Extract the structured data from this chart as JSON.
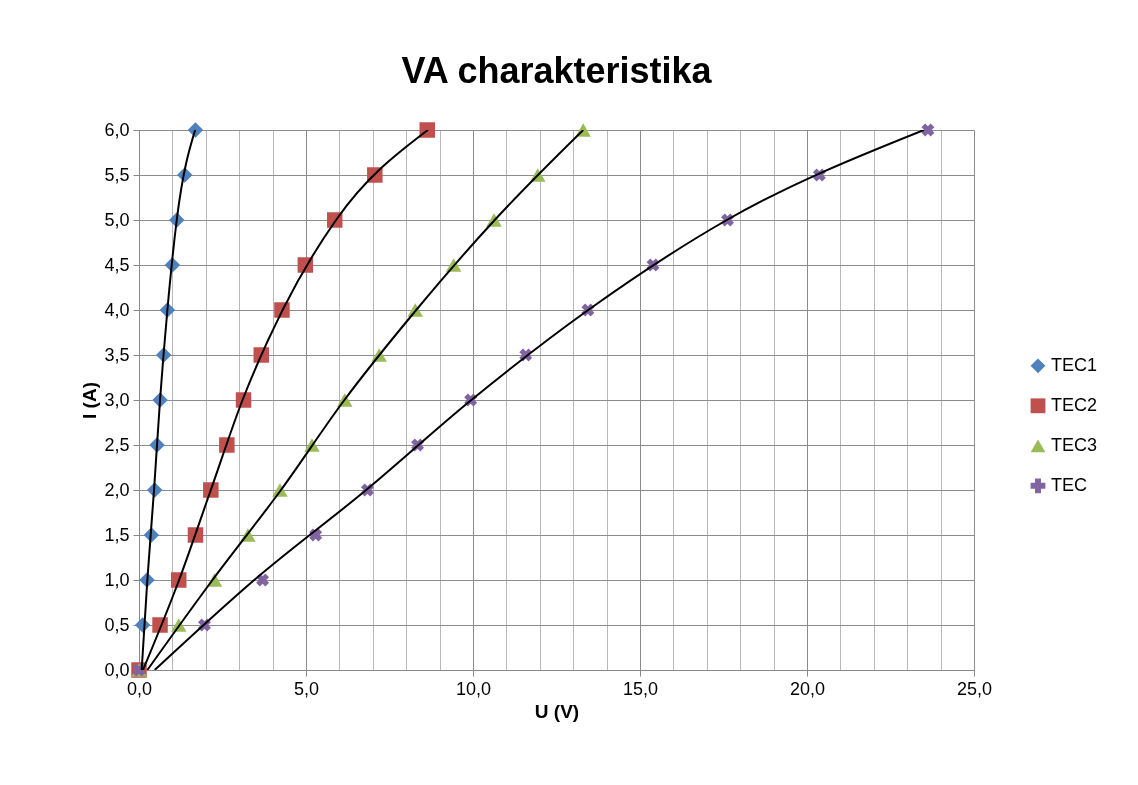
{
  "chart_data": {
    "type": "scatter",
    "title": "VA charakteristika",
    "xlabel": "U (V)",
    "ylabel": "I (A)",
    "xlim": [
      0,
      25
    ],
    "ylim": [
      0,
      6
    ],
    "xticks": [
      {
        "value": 0,
        "label": "0,0"
      },
      {
        "value": 1,
        "label": null
      },
      {
        "value": 2,
        "label": null
      },
      {
        "value": 3,
        "label": null
      },
      {
        "value": 4,
        "label": null
      },
      {
        "value": 5,
        "label": "5,0"
      },
      {
        "value": 6,
        "label": null
      },
      {
        "value": 7,
        "label": null
      },
      {
        "value": 8,
        "label": null
      },
      {
        "value": 9,
        "label": null
      },
      {
        "value": 10,
        "label": "10,0"
      },
      {
        "value": 11,
        "label": null
      },
      {
        "value": 12,
        "label": null
      },
      {
        "value": 13,
        "label": null
      },
      {
        "value": 14,
        "label": null
      },
      {
        "value": 15,
        "label": "15,0"
      },
      {
        "value": 16,
        "label": null
      },
      {
        "value": 17,
        "label": null
      },
      {
        "value": 18,
        "label": null
      },
      {
        "value": 19,
        "label": null
      },
      {
        "value": 20,
        "label": "20,0"
      },
      {
        "value": 21,
        "label": null
      },
      {
        "value": 22,
        "label": null
      },
      {
        "value": 23,
        "label": null
      },
      {
        "value": 24,
        "label": null
      },
      {
        "value": 25,
        "label": "25,0"
      }
    ],
    "yticks": [
      {
        "value": 0,
        "label": "0,0"
      },
      {
        "value": 0.5,
        "label": "0,5"
      },
      {
        "value": 1,
        "label": "1,0"
      },
      {
        "value": 1.5,
        "label": "1,5"
      },
      {
        "value": 2,
        "label": "2,0"
      },
      {
        "value": 2.5,
        "label": "2,5"
      },
      {
        "value": 3,
        "label": "3,0"
      },
      {
        "value": 3.5,
        "label": "3,5"
      },
      {
        "value": 4,
        "label": "4,0"
      },
      {
        "value": 4.5,
        "label": "4,5"
      },
      {
        "value": 5,
        "label": "5,0"
      },
      {
        "value": 5.5,
        "label": "5,5"
      },
      {
        "value": 6,
        "label": "6,0"
      }
    ],
    "grid": true,
    "legend": "right",
    "series": [
      {
        "name": "TEC1",
        "marker": "diamond",
        "color": "#4f81bd",
        "x": [
          0.11,
          0.24,
          0.37,
          0.47,
          0.54,
          0.63,
          0.74,
          0.85,
          1.0,
          1.13,
          1.37,
          1.69
        ],
        "values": [
          0.5,
          1,
          1.5,
          2,
          2.5,
          3,
          3.5,
          4,
          4.5,
          5,
          5.5,
          6
        ]
      },
      {
        "name": "TEC2",
        "marker": "square",
        "color": "#c0504d",
        "x": [
          0,
          0.63,
          1.19,
          1.69,
          2.15,
          2.63,
          3.13,
          3.66,
          4.28,
          4.98,
          5.86,
          7.06,
          8.63
        ],
        "values": [
          0,
          0.5,
          1,
          1.5,
          2,
          2.5,
          3,
          3.5,
          4,
          4.5,
          5,
          5.5,
          6
        ]
      },
      {
        "name": "TEC3",
        "marker": "triangle",
        "color": "#9bbb59",
        "x": [
          0,
          1.19,
          2.26,
          3.26,
          4.22,
          5.18,
          6.16,
          7.19,
          8.27,
          9.42,
          10.63,
          11.94,
          13.3
        ],
        "values": [
          0,
          0.5,
          1,
          1.5,
          2,
          2.5,
          3,
          3.5,
          4,
          4.5,
          5,
          5.5,
          6
        ]
      },
      {
        "name": "TEC",
        "marker": "cross",
        "color": "#8064a2",
        "x": [
          0,
          1.96,
          3.7,
          5.29,
          6.84,
          8.34,
          9.93,
          11.58,
          13.44,
          15.39,
          17.62,
          20.37,
          23.62
        ],
        "values": [
          0,
          0.5,
          1,
          1.5,
          2,
          2.5,
          3,
          3.5,
          4,
          4.5,
          5,
          5.5,
          6
        ]
      },
      {
        "type": "line",
        "color": "#000000",
        "x": [
          0.08,
          0.25,
          0.45,
          0.63,
          0.85,
          1.13,
          1.68
        ],
        "values": [
          0,
          1,
          2,
          3,
          4,
          5,
          6
        ]
      },
      {
        "type": "line",
        "color": "#000000",
        "x": [
          0.12,
          1.2,
          2.15,
          3.1,
          4.3,
          5.9,
          8.65
        ],
        "values": [
          0,
          1,
          2,
          3,
          4,
          5,
          6
        ]
      },
      {
        "type": "line",
        "color": "#000000",
        "x": [
          0.25,
          2.2,
          4.25,
          6.15,
          8.3,
          10.65,
          13.3
        ],
        "values": [
          0,
          1,
          2,
          3,
          4,
          5,
          6
        ]
      },
      {
        "type": "line",
        "color": "#000000",
        "x": [
          0.47,
          3.45,
          6.8,
          9.95,
          13.45,
          17.6,
          23.5
        ],
        "values": [
          0,
          1,
          2,
          3,
          4,
          5,
          6
        ]
      }
    ]
  }
}
